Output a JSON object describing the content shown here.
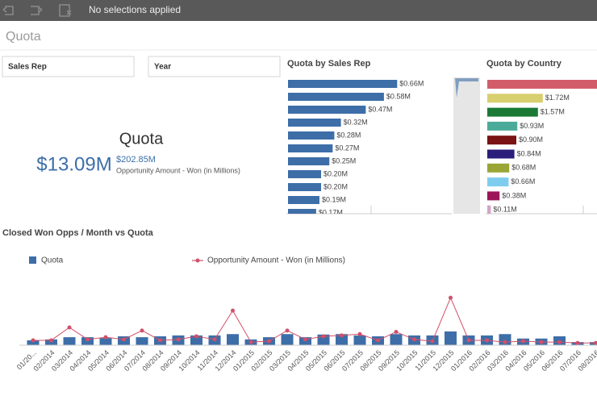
{
  "toolbar": {
    "selection_status": "No selections applied"
  },
  "sheet_title": "Quota",
  "filters": [
    "Sales Rep",
    "Year"
  ],
  "kpi": {
    "title": "Quota",
    "value": "$13.09M",
    "secondary_value": "$202.85M",
    "secondary_label": "Opportunity Amount - Won (in Millions)"
  },
  "chart_data": [
    {
      "type": "barh",
      "title": "Quota by Sales Rep",
      "values": [
        0.66,
        0.58,
        0.47,
        0.32,
        0.28,
        0.27,
        0.25,
        0.2,
        0.2,
        0.19,
        0.17
      ],
      "value_labels": [
        "$0.66M",
        "$0.58M",
        "$0.47M",
        "$0.32M",
        "$0.28M",
        "$0.27M",
        "$0.25M",
        "$0.20M",
        "$0.20M",
        "$0.19M",
        "$0.17M"
      ],
      "color": "#3d6ea8",
      "xlim": [
        0,
        1
      ]
    },
    {
      "type": "barh",
      "title": "Quota by Country",
      "values": [
        3.5,
        1.72,
        1.57,
        0.93,
        0.9,
        0.84,
        0.68,
        0.66,
        0.38,
        0.11
      ],
      "value_labels": [
        null,
        "$1.72M",
        "$1.57M",
        "$0.93M",
        "$0.90M",
        "$0.84M",
        "$0.68M",
        "$0.66M",
        "$0.38M",
        "$0.11M"
      ],
      "colors": [
        "#d35c6b",
        "#d8cf6e",
        "#1a7a35",
        "#4bab9a",
        "#7a1313",
        "#2a1e7a",
        "#9aa536",
        "#7fcdee",
        "#9c1558",
        "#d2a4c4"
      ],
      "xlim": [
        0,
        3.4
      ]
    },
    {
      "type": "combo",
      "title": "Closed Won Opps / Month vs Quota",
      "categories": [
        "01/20...",
        "02/2014",
        "03/2014",
        "04/2014",
        "05/2014",
        "06/2014",
        "07/2014",
        "08/2014",
        "09/2014",
        "10/2014",
        "11/2014",
        "12/2014",
        "01/2015",
        "02/2015",
        "03/2015",
        "04/2015",
        "05/2015",
        "06/2015",
        "07/2015",
        "08/2015",
        "09/2015",
        "10/2015",
        "11/2015",
        "12/2015",
        "01/2016",
        "02/2016",
        "03/2016",
        "04/2016",
        "05/2016",
        "06/2016",
        "07/2016",
        "08/2016"
      ],
      "series": [
        {
          "name": "Quota",
          "kind": "bar",
          "color": "#3d6ea8",
          "values": [
            0.11,
            0.13,
            0.18,
            0.18,
            0.16,
            0.2,
            0.18,
            0.2,
            0.22,
            0.22,
            0.22,
            0.25,
            0.13,
            0.18,
            0.25,
            0.18,
            0.24,
            0.25,
            0.22,
            0.2,
            0.25,
            0.22,
            0.22,
            0.31,
            0.22,
            0.22,
            0.25,
            0.15,
            0.15,
            0.2,
            0.07,
            0.07
          ]
        },
        {
          "name": "Opportunity Amount - Won (in Millions)",
          "kind": "line",
          "color": "#d1506a",
          "values": [
            0.11,
            0.11,
            0.4,
            0.13,
            0.18,
            0.13,
            0.33,
            0.11,
            0.13,
            0.2,
            0.13,
            0.78,
            0.07,
            0.09,
            0.33,
            0.13,
            0.2,
            0.22,
            0.25,
            0.11,
            0.3,
            0.13,
            0.09,
            1.07,
            0.11,
            0.11,
            0.07,
            0.09,
            0.07,
            0.07,
            0.05,
            0.05
          ]
        }
      ],
      "ylim": [
        0,
        1.6
      ]
    }
  ]
}
